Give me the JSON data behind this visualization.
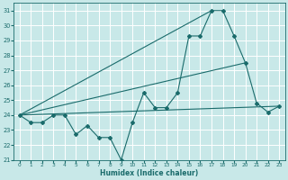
{
  "xlabel": "Humidex (Indice chaleur)",
  "bg_color": "#c8e8e8",
  "grid_color": "#ffffff",
  "line_color": "#1a6b6b",
  "xlim": [
    -0.5,
    23.5
  ],
  "ylim": [
    21,
    31.5
  ],
  "yticks": [
    21,
    22,
    23,
    24,
    25,
    26,
    27,
    28,
    29,
    30,
    31
  ],
  "xticks": [
    0,
    1,
    2,
    3,
    4,
    5,
    6,
    7,
    8,
    9,
    10,
    11,
    12,
    13,
    14,
    15,
    16,
    17,
    18,
    19,
    20,
    21,
    22,
    23
  ],
  "series_zigzag": {
    "x": [
      0,
      1,
      2,
      3,
      4,
      5,
      6,
      7,
      8,
      9,
      10,
      11,
      12,
      13,
      14,
      15,
      16,
      17,
      18,
      19,
      20,
      21,
      22,
      23
    ],
    "y": [
      24,
      23.5,
      23.5,
      24,
      24,
      22.7,
      23.3,
      22.5,
      22.5,
      21,
      23.5,
      25.5,
      24.5,
      24.5,
      25.5,
      29.3,
      29.3,
      31,
      31,
      29.3,
      27.5,
      24.8,
      24.2,
      24.6
    ]
  },
  "series_flat": {
    "x": [
      0,
      23
    ],
    "y": [
      24,
      24.6
    ]
  },
  "series_steep": {
    "x": [
      0,
      17
    ],
    "y": [
      24,
      31
    ]
  },
  "series_mid": {
    "x": [
      0,
      20
    ],
    "y": [
      24,
      27.5
    ]
  }
}
